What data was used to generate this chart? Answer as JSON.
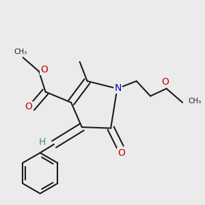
{
  "bg_color": "#ebebeb",
  "bond_color": "#1a1a1a",
  "bond_width": 1.5,
  "atom_colors": {
    "O": "#cc0000",
    "N": "#0000cc",
    "H": "#4a8888",
    "C": "#1a1a1a"
  },
  "font_size": 10,
  "fig_size": [
    3.0,
    3.0
  ],
  "dpi": 100
}
